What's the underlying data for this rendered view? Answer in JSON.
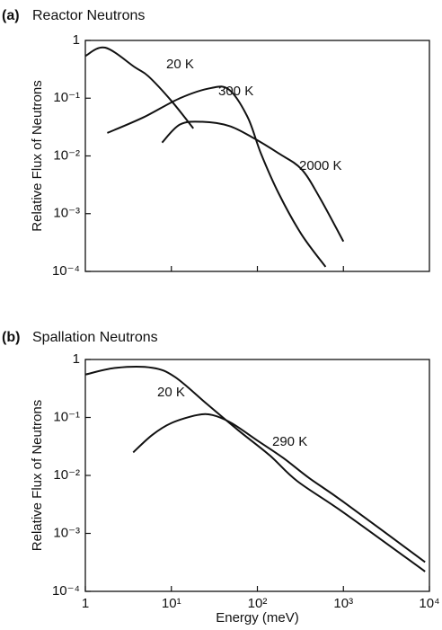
{
  "chart_data": [
    {
      "type": "line",
      "panel": "(a)",
      "title": "Reactor Neutrons",
      "ylabel": "Relative Flux of Neutrons",
      "xscale": "log",
      "yscale": "log",
      "xlim": [
        1,
        10000
      ],
      "ylim": [
        0.0001,
        1
      ],
      "xticks": [
        10,
        100,
        1000
      ],
      "xtick_labels": false,
      "yticks": [
        {
          "value": 0.0001,
          "label": "10⁻⁴"
        },
        {
          "value": 0.001,
          "label": "10⁻³"
        },
        {
          "value": 0.01,
          "label": "10⁻²"
        },
        {
          "value": 0.1,
          "label": "10⁻¹"
        },
        1
      ],
      "series": [
        {
          "name": "20 K",
          "color": "#111111",
          "x": [
            1,
            1.7,
            3.8,
            5.4,
            10,
            18
          ],
          "values": [
            0.54,
            0.75,
            0.34,
            0.24,
            0.09,
            0.03
          ]
        },
        {
          "name": "300 K",
          "color": "#111111",
          "x": [
            1.8,
            4.8,
            12.6,
            29,
            47,
            77,
            110,
            178,
            325,
            620
          ],
          "values": [
            0.025,
            0.047,
            0.1,
            0.15,
            0.14,
            0.047,
            0.011,
            0.0022,
            0.00044,
            0.00012
          ]
        },
        {
          "name": "2000 K",
          "color": "#111111",
          "x": [
            7.8,
            12.6,
            23,
            47,
            87,
            178,
            325,
            530,
            1000
          ],
          "values": [
            0.017,
            0.035,
            0.039,
            0.033,
            0.021,
            0.011,
            0.0059,
            0.0019,
            0.00033
          ]
        }
      ]
    },
    {
      "type": "line",
      "panel": "(b)",
      "title": "Spallation Neutrons",
      "ylabel": "Relative Flux of Neutrons",
      "xlabel": "Energy (meV)",
      "xscale": "log",
      "yscale": "log",
      "xlim": [
        1,
        10000
      ],
      "ylim": [
        0.0001,
        1
      ],
      "xticks": [
        1,
        {
          "value": 10,
          "label": "10¹"
        },
        {
          "value": 100,
          "label": "10²"
        },
        {
          "value": 1000,
          "label": "10³"
        },
        {
          "value": 10000,
          "label": "10⁴"
        }
      ],
      "xtick_labels": true,
      "yticks": [
        {
          "value": 0.0001,
          "label": "10⁻⁴"
        },
        {
          "value": 0.001,
          "label": "10⁻³"
        },
        {
          "value": 0.01,
          "label": "10⁻²"
        },
        {
          "value": 0.1,
          "label": "10⁻¹"
        },
        1
      ],
      "series": [
        {
          "name": "20 K",
          "color": "#111111",
          "x": [
            1,
            2.3,
            6,
            11,
            26,
            60,
            140,
            290,
            1000,
            8900
          ],
          "values": [
            0.55,
            0.72,
            0.72,
            0.5,
            0.17,
            0.06,
            0.022,
            0.008,
            0.0023,
            0.00022
          ]
        },
        {
          "name": "290 K",
          "color": "#111111",
          "x": [
            3.6,
            6,
            10,
            20,
            30,
            50,
            100,
            200,
            400,
            1000,
            8900
          ],
          "values": [
            0.025,
            0.05,
            0.08,
            0.11,
            0.11,
            0.08,
            0.04,
            0.02,
            0.009,
            0.0035,
            0.00032
          ]
        }
      ]
    }
  ]
}
